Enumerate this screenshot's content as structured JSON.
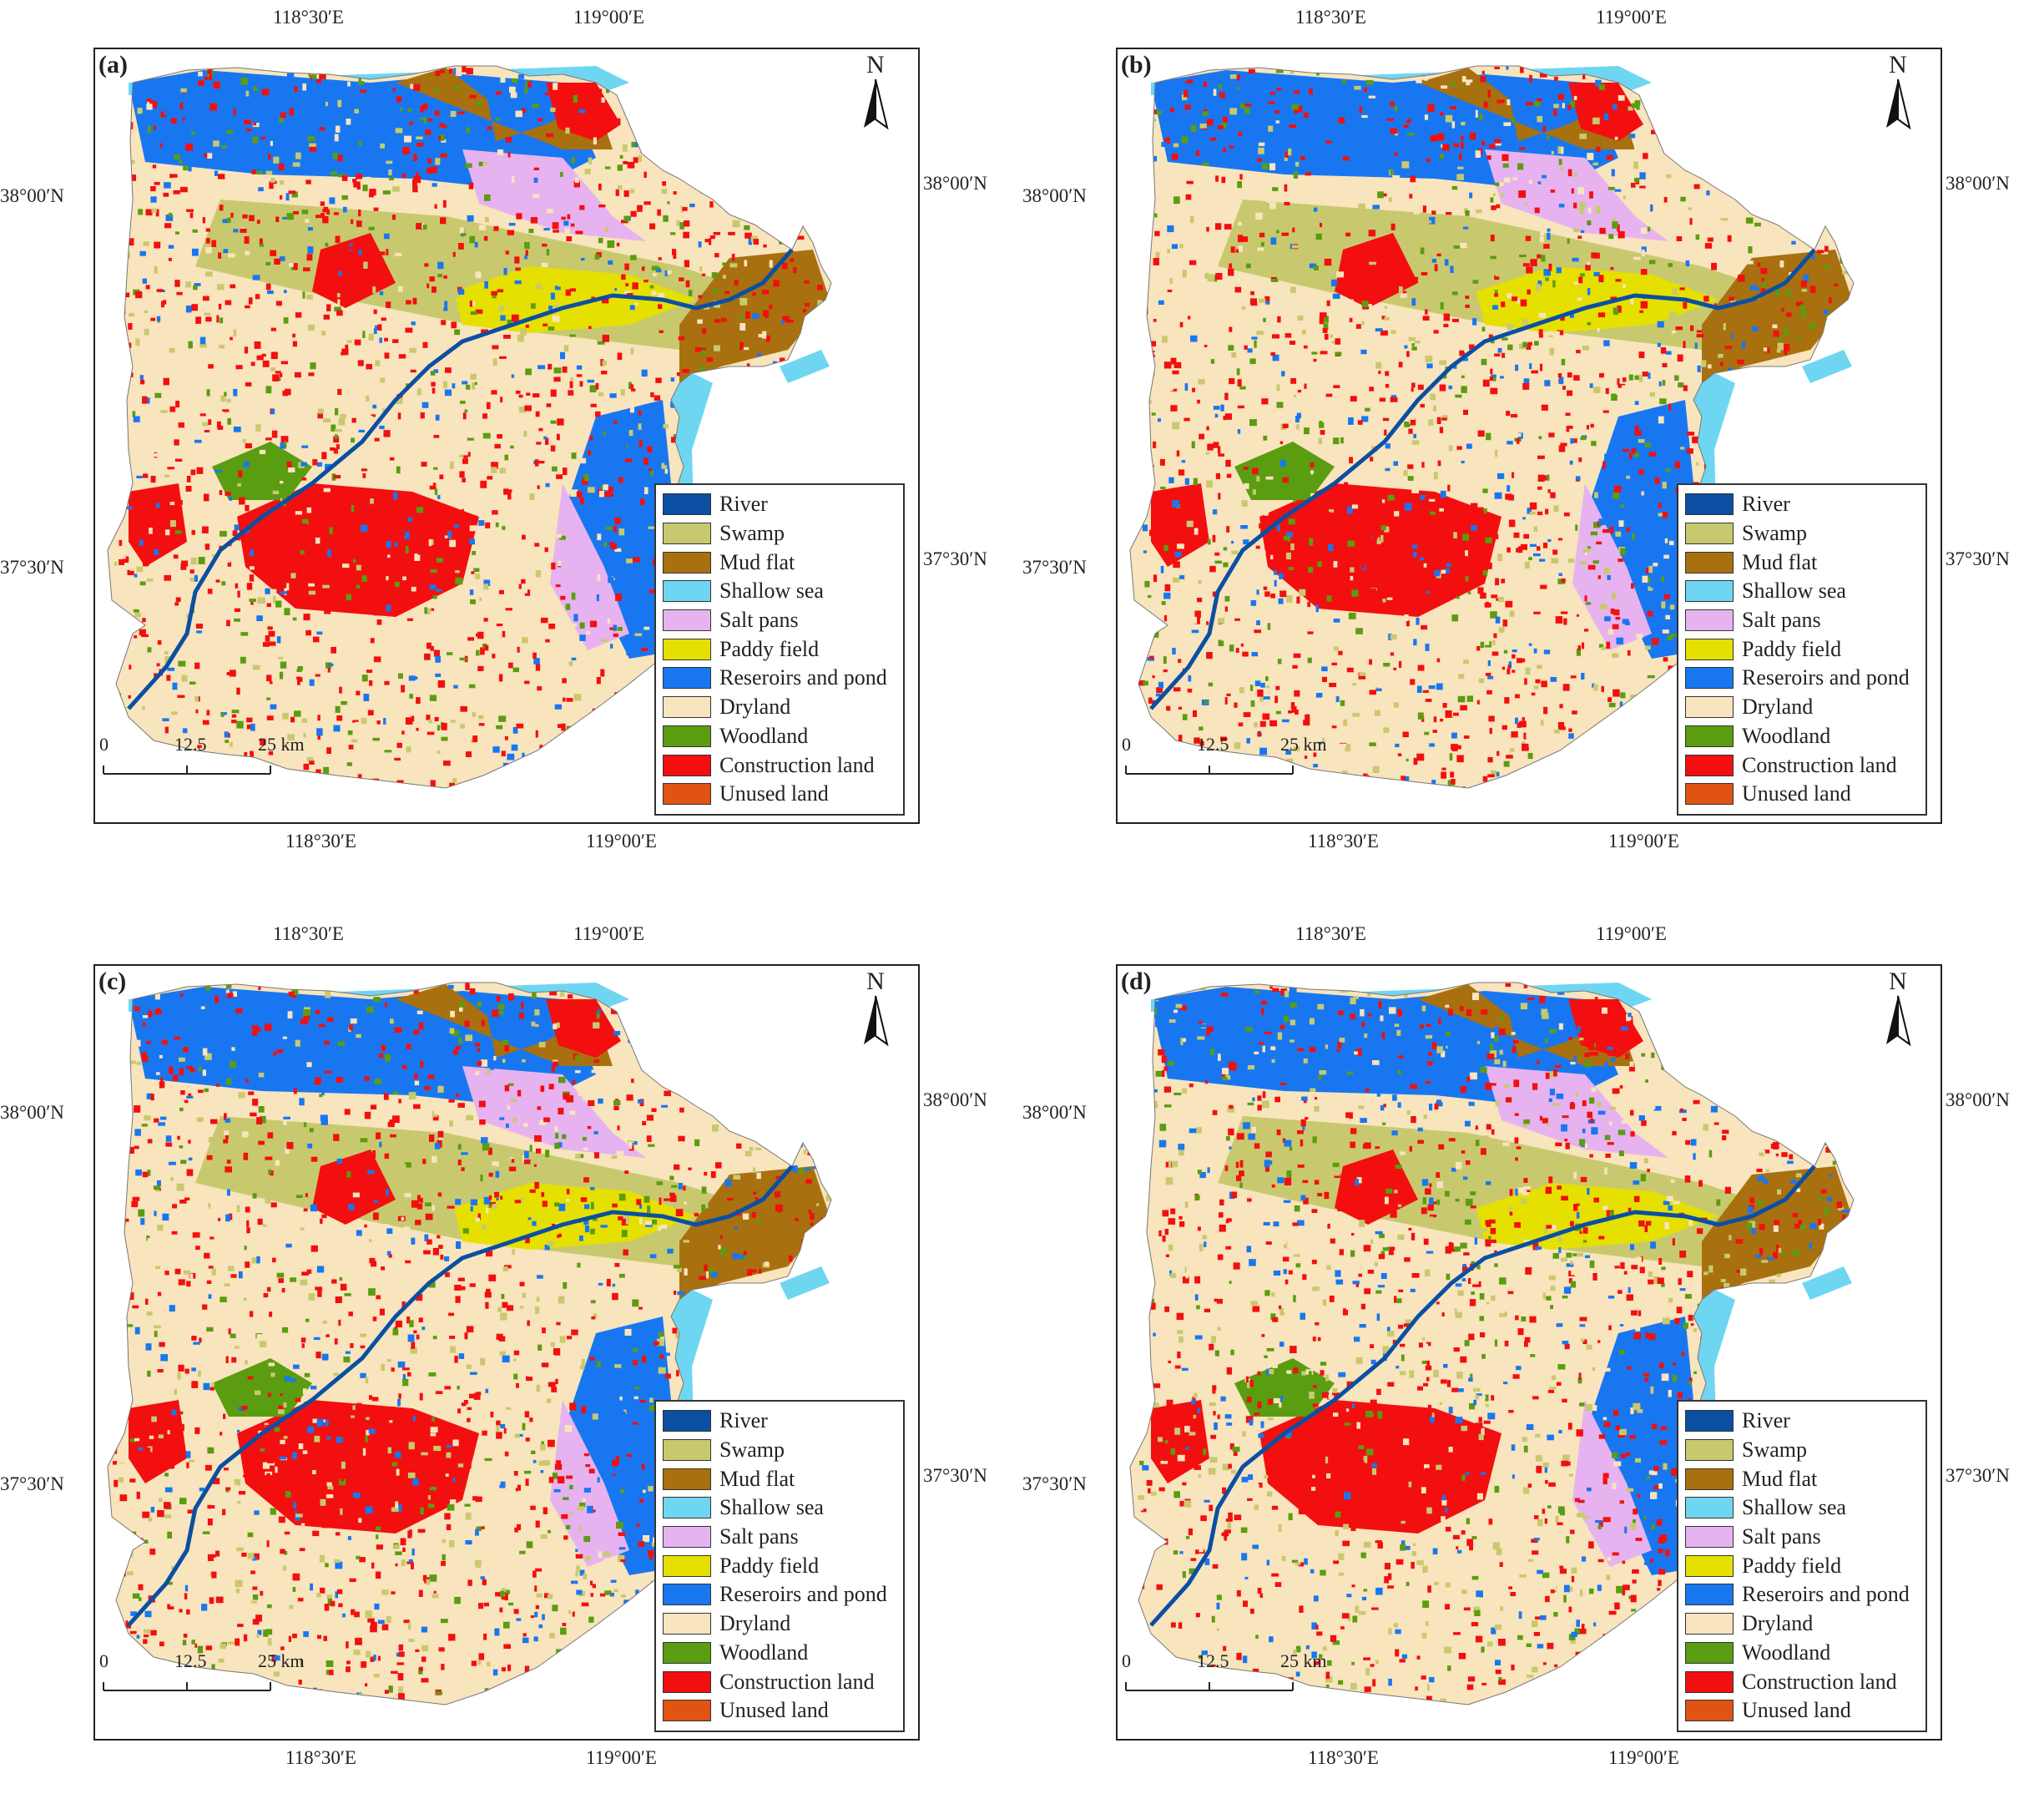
{
  "panels": [
    {
      "label": "(a)",
      "id": "a"
    },
    {
      "label": "(b)",
      "id": "b"
    },
    {
      "label": "(c)",
      "id": "c"
    },
    {
      "label": "(d)",
      "id": "d"
    }
  ],
  "coords": {
    "lon_left": "118°30′E",
    "lon_right": "119°00′E",
    "lat_top": "38°00′N",
    "lat_bottom": "37°30′N"
  },
  "north": "N",
  "scale": {
    "t0": "0",
    "t1": "12.5",
    "t2": "25 km"
  },
  "legend": [
    {
      "label": "River",
      "color": "#0b4fa3"
    },
    {
      "label": "Swamp",
      "color": "#c8c96e"
    },
    {
      "label": "Mud flat",
      "color": "#a8700f"
    },
    {
      "label": "Shallow sea",
      "color": "#6fd6f2"
    },
    {
      "label": "Salt pans",
      "color": "#e6b3f0"
    },
    {
      "label": "Paddy field",
      "color": "#e5e000"
    },
    {
      "label": "Reseroirs and pond",
      "color": "#1877f0"
    },
    {
      "label": "Dryland",
      "color": "#f8e4bd"
    },
    {
      "label": "Woodland",
      "color": "#5a9d10"
    },
    {
      "label": "Construction land",
      "color": "#f30f0f"
    },
    {
      "label": "Unused land",
      "color": "#e05312"
    }
  ]
}
